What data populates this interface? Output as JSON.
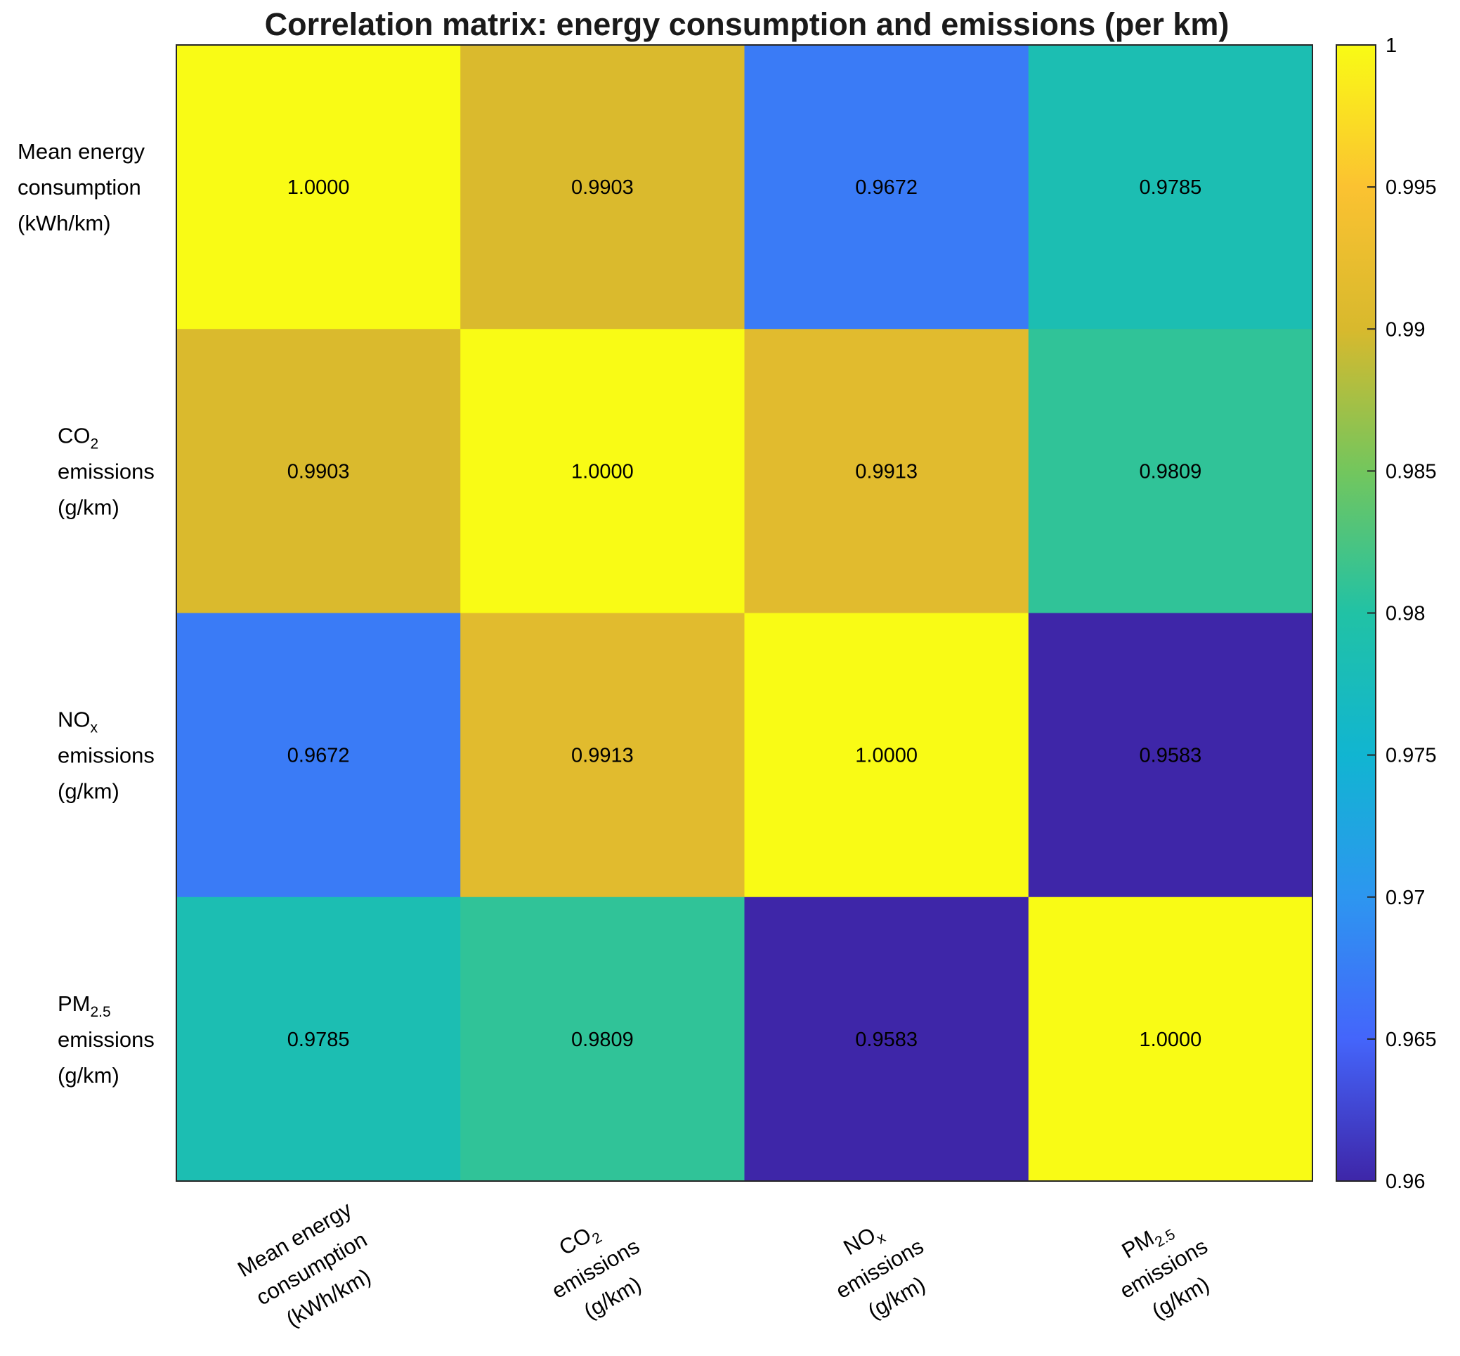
{
  "chart_data": {
    "type": "heatmap",
    "title": "Correlation matrix: energy consumption and emissions (per km)",
    "labels": [
      {
        "lines": [
          [
            {
              "t": "Mean  energy"
            }
          ],
          [
            {
              "t": "consumption"
            }
          ],
          [
            {
              "t": "(kWh/km)"
            }
          ]
        ]
      },
      {
        "lines": [
          [
            {
              "t": "CO"
            },
            {
              "t": "2",
              "sub": true
            }
          ],
          [
            {
              "t": "emissions"
            }
          ],
          [
            {
              "t": "(g/km)"
            }
          ]
        ]
      },
      {
        "lines": [
          [
            {
              "t": "NO"
            },
            {
              "t": "x",
              "sub": true
            }
          ],
          [
            {
              "t": "emissions"
            }
          ],
          [
            {
              "t": "(g/km)"
            }
          ]
        ]
      },
      {
        "lines": [
          [
            {
              "t": "PM"
            },
            {
              "t": "2.5",
              "sub": true
            }
          ],
          [
            {
              "t": "emissions"
            }
          ],
          [
            {
              "t": "(g/km)"
            }
          ]
        ]
      }
    ],
    "values": [
      [
        1.0,
        0.9903,
        0.9672,
        0.9785
      ],
      [
        0.9903,
        1.0,
        0.9913,
        0.9809
      ],
      [
        0.9672,
        0.9913,
        1.0,
        0.9583
      ],
      [
        0.9785,
        0.9809,
        0.9583,
        1.0
      ]
    ],
    "value_labels": [
      [
        "1.0000",
        "0.9903",
        "0.9672",
        "0.9785"
      ],
      [
        "0.9903",
        "1.0000",
        "0.9913",
        "0.9809"
      ],
      [
        "0.9672",
        "0.9913",
        "1.0000",
        "0.9583"
      ],
      [
        "0.9785",
        "0.9809",
        "0.9583",
        "1.0000"
      ]
    ],
    "colorbar": {
      "range": [
        0.96,
        1
      ],
      "ticks": [
        0.96,
        0.965,
        0.97,
        0.975,
        0.98,
        0.985,
        0.99,
        0.995,
        1
      ],
      "tick_labels": [
        "0.96",
        "0.965",
        "0.97",
        "0.975",
        "0.98",
        "0.985",
        "0.99",
        "0.995",
        "1"
      ],
      "colormap": "parula",
      "stops": [
        "#3e26a8",
        "#4465fb",
        "#2d96f0",
        "#11b5d1",
        "#21c2a5",
        "#73c65d",
        "#d8b92d",
        "#fbc231",
        "#f9fb15"
      ]
    },
    "legend": "colorbar right"
  }
}
